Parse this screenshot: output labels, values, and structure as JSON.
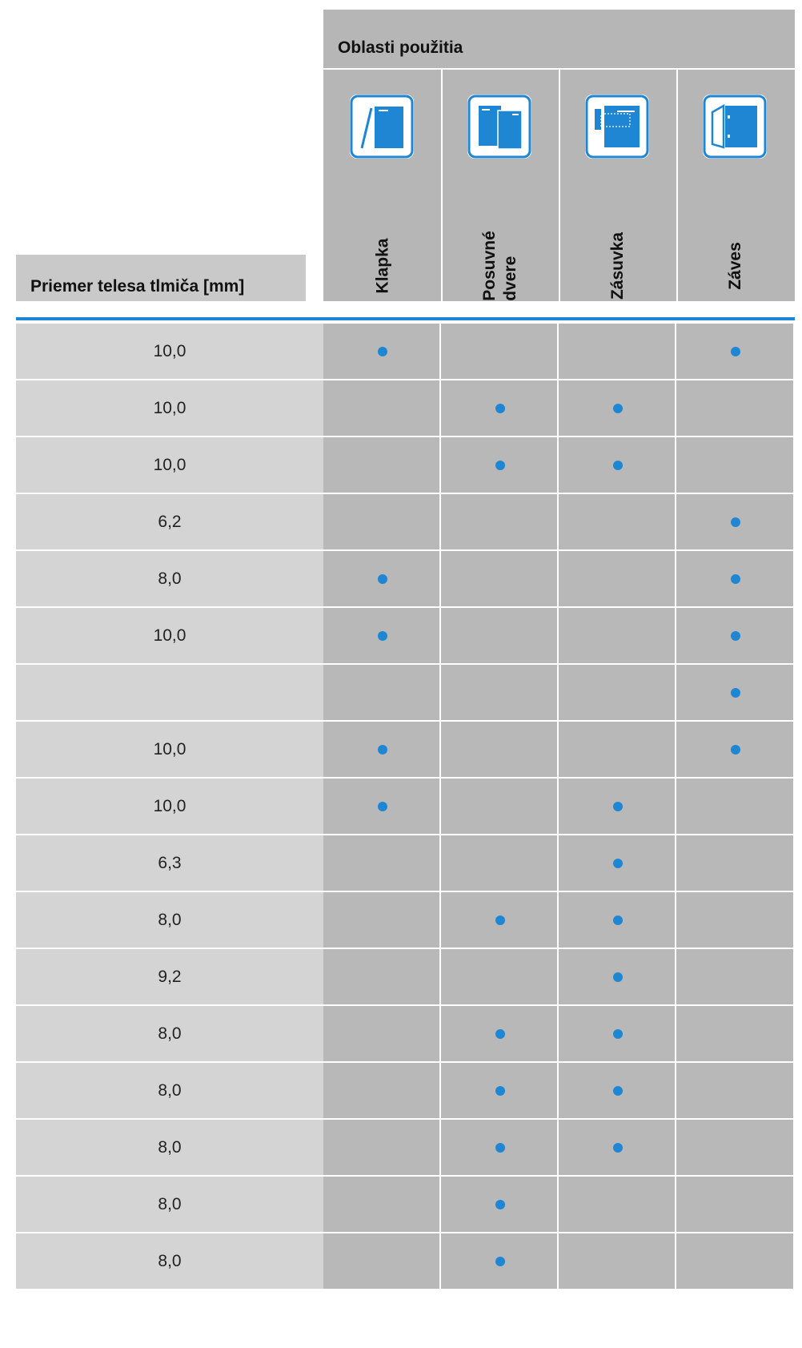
{
  "header": {
    "left_label": "Priemer telesa tlmiča [mm]",
    "group_title": "Oblasti použitia",
    "columns": [
      {
        "label": "Klapka",
        "icon": "flap-icon"
      },
      {
        "label": "Posuvné\ndvere",
        "icon": "sliding-door-icon"
      },
      {
        "label": "Zásuvka",
        "icon": "drawer-icon"
      },
      {
        "label": "Záves",
        "icon": "hinge-icon"
      }
    ]
  },
  "colors": {
    "accent": "#1f86d4",
    "left_cell": "#d4d4d4",
    "app_cell": "#b8b8b8",
    "header_bg": "#b6b6b6"
  },
  "rows": [
    {
      "diameter": "10,0",
      "marks": [
        true,
        false,
        false,
        true
      ]
    },
    {
      "diameter": "10,0",
      "marks": [
        false,
        true,
        true,
        false
      ]
    },
    {
      "diameter": "10,0",
      "marks": [
        false,
        true,
        true,
        false
      ]
    },
    {
      "diameter": "6,2",
      "marks": [
        false,
        false,
        false,
        true
      ]
    },
    {
      "diameter": "8,0",
      "marks": [
        true,
        false,
        false,
        true
      ]
    },
    {
      "diameter": "10,0",
      "marks": [
        true,
        false,
        false,
        true
      ]
    },
    {
      "diameter": "",
      "marks": [
        false,
        false,
        false,
        true
      ]
    },
    {
      "diameter": "10,0",
      "marks": [
        true,
        false,
        false,
        true
      ]
    },
    {
      "diameter": "10,0",
      "marks": [
        true,
        false,
        true,
        false
      ]
    },
    {
      "diameter": "6,3",
      "marks": [
        false,
        false,
        true,
        false
      ]
    },
    {
      "diameter": "8,0",
      "marks": [
        false,
        true,
        true,
        false
      ]
    },
    {
      "diameter": "9,2",
      "marks": [
        false,
        false,
        true,
        false
      ]
    },
    {
      "diameter": "8,0",
      "marks": [
        false,
        true,
        true,
        false
      ]
    },
    {
      "diameter": "8,0",
      "marks": [
        false,
        true,
        true,
        false
      ]
    },
    {
      "diameter": "8,0",
      "marks": [
        false,
        true,
        true,
        false
      ]
    },
    {
      "diameter": "8,0",
      "marks": [
        false,
        true,
        false,
        false
      ]
    },
    {
      "diameter": "8,0",
      "marks": [
        false,
        true,
        false,
        false
      ]
    }
  ]
}
